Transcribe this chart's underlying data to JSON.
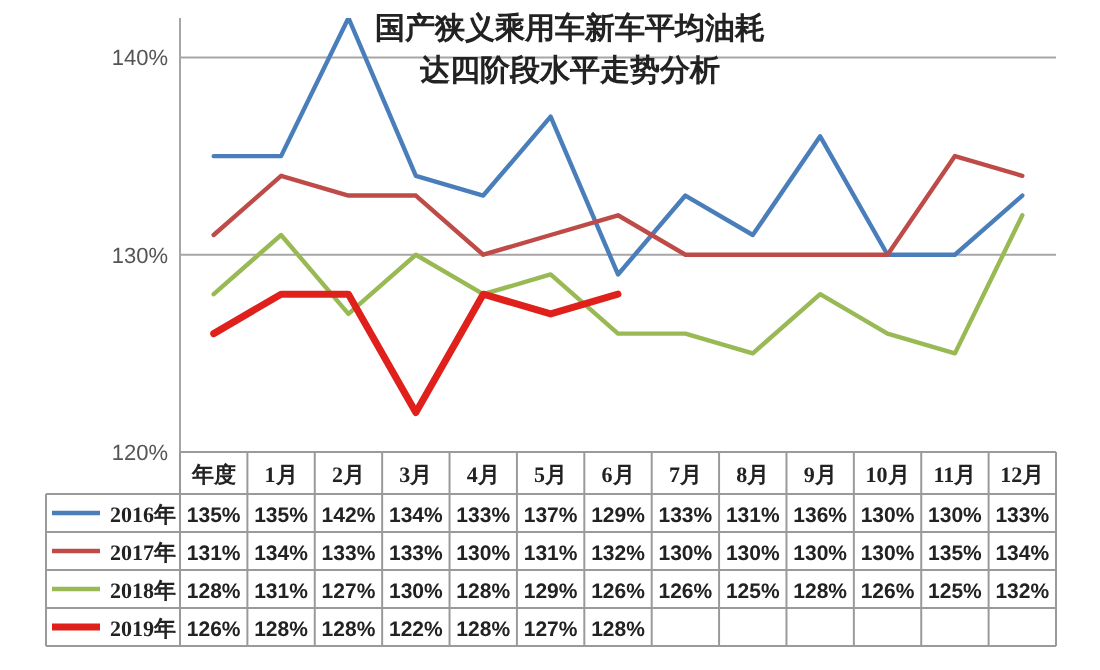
{
  "chart_data": {
    "type": "line",
    "title": "国产狭义乘用车新车平均油耗",
    "subtitle": "达四阶段水平走势分析",
    "categories": [
      "年度",
      "1月",
      "2月",
      "3月",
      "4月",
      "5月",
      "6月",
      "7月",
      "8月",
      "9月",
      "10月",
      "11月",
      "12月"
    ],
    "ylim": [
      120,
      142
    ],
    "yticks": [
      {
        "value": 120,
        "label": "120%"
      },
      {
        "value": 130,
        "label": "130%"
      },
      {
        "value": 140,
        "label": "140%"
      }
    ],
    "grid": "y",
    "legend": "bottom",
    "marker": "none",
    "line_style": "solid",
    "series": [
      {
        "name": "2016年",
        "color": "#4a7ebb",
        "values": [
          135,
          135,
          142,
          134,
          133,
          137,
          129,
          133,
          131,
          136,
          130,
          130,
          133
        ],
        "value_labels": [
          "135%",
          "135%",
          "142%",
          "134%",
          "133%",
          "137%",
          "129%",
          "133%",
          "131%",
          "136%",
          "130%",
          "130%",
          "133%"
        ]
      },
      {
        "name": "2017年",
        "color": "#be4b48",
        "values": [
          131,
          134,
          133,
          133,
          130,
          131,
          132,
          130,
          130,
          130,
          130,
          135,
          134
        ],
        "value_labels": [
          "131%",
          "134%",
          "133%",
          "133%",
          "130%",
          "131%",
          "132%",
          "130%",
          "130%",
          "130%",
          "130%",
          "135%",
          "134%"
        ]
      },
      {
        "name": "2018年",
        "color": "#98b954",
        "values": [
          128,
          131,
          127,
          130,
          128,
          129,
          126,
          126,
          125,
          128,
          126,
          125,
          132
        ],
        "value_labels": [
          "128%",
          "131%",
          "127%",
          "130%",
          "128%",
          "129%",
          "126%",
          "126%",
          "125%",
          "128%",
          "126%",
          "125%",
          "132%"
        ]
      },
      {
        "name": "2019年",
        "color": "#e0201b",
        "values": [
          126,
          128,
          128,
          122,
          128,
          127,
          128,
          null,
          null,
          null,
          null,
          null,
          null
        ],
        "value_labels": [
          "126%",
          "128%",
          "128%",
          "122%",
          "128%",
          "127%",
          "128%",
          null,
          null,
          null,
          null,
          null,
          null
        ]
      }
    ]
  }
}
